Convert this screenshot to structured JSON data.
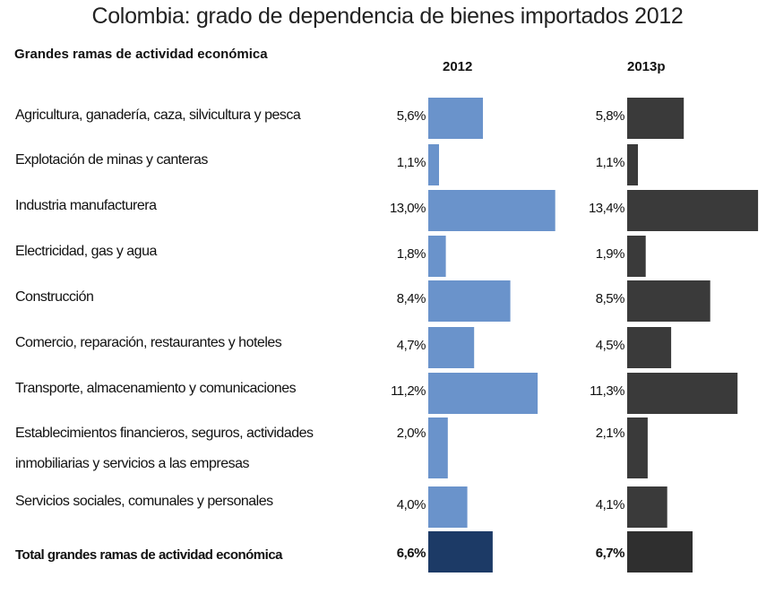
{
  "chart_data": {
    "type": "bar",
    "title": "Colombia: grado de dependencia de bienes importados  2012",
    "row_header": "Grandes ramas de actividad económica",
    "categories": [
      [
        "Agricultura, ganadería, caza, silvicultura y pesca"
      ],
      [
        "Explotación de minas y canteras"
      ],
      [
        "Industria manufacturera"
      ],
      [
        "Electricidad, gas y agua"
      ],
      [
        "Construcción"
      ],
      [
        "Comercio, reparación, restaurantes y hoteles"
      ],
      [
        "Transporte, almacenamiento y comunicaciones"
      ],
      [
        "Establecimientos financieros, seguros, actividades",
        "inmobiliarias y servicios a las empresas"
      ],
      [
        "Servicios sociales, comunales y personales"
      ],
      [
        "Total grandes ramas de actividad económica"
      ]
    ],
    "series": [
      {
        "name": "2012",
        "values": [
          5.6,
          1.1,
          13.0,
          1.8,
          8.4,
          4.7,
          11.2,
          2.0,
          4.0,
          6.6
        ],
        "value_labels": [
          "5,6%",
          "1,1%",
          "13,0%",
          "1,8%",
          "8,4%",
          "4,7%",
          "11,2%",
          "2,0%",
          "4,0%",
          "6,6%"
        ],
        "color": "#6a93cb",
        "total_color": "#1c3a66"
      },
      {
        "name": "2013p",
        "values": [
          5.8,
          1.1,
          13.4,
          1.9,
          8.5,
          4.5,
          11.3,
          2.1,
          4.1,
          6.7
        ],
        "value_labels": [
          "5,8%",
          "1,1%",
          "13,4%",
          "1,9%",
          "8,5%",
          "4,5%",
          "11,3%",
          "2,1%",
          "4,1%",
          "6,7%"
        ],
        "color": "#3a3a3a",
        "total_color": "#2f2f2f"
      }
    ],
    "total_index": 9,
    "grid": false,
    "legend": "none"
  }
}
